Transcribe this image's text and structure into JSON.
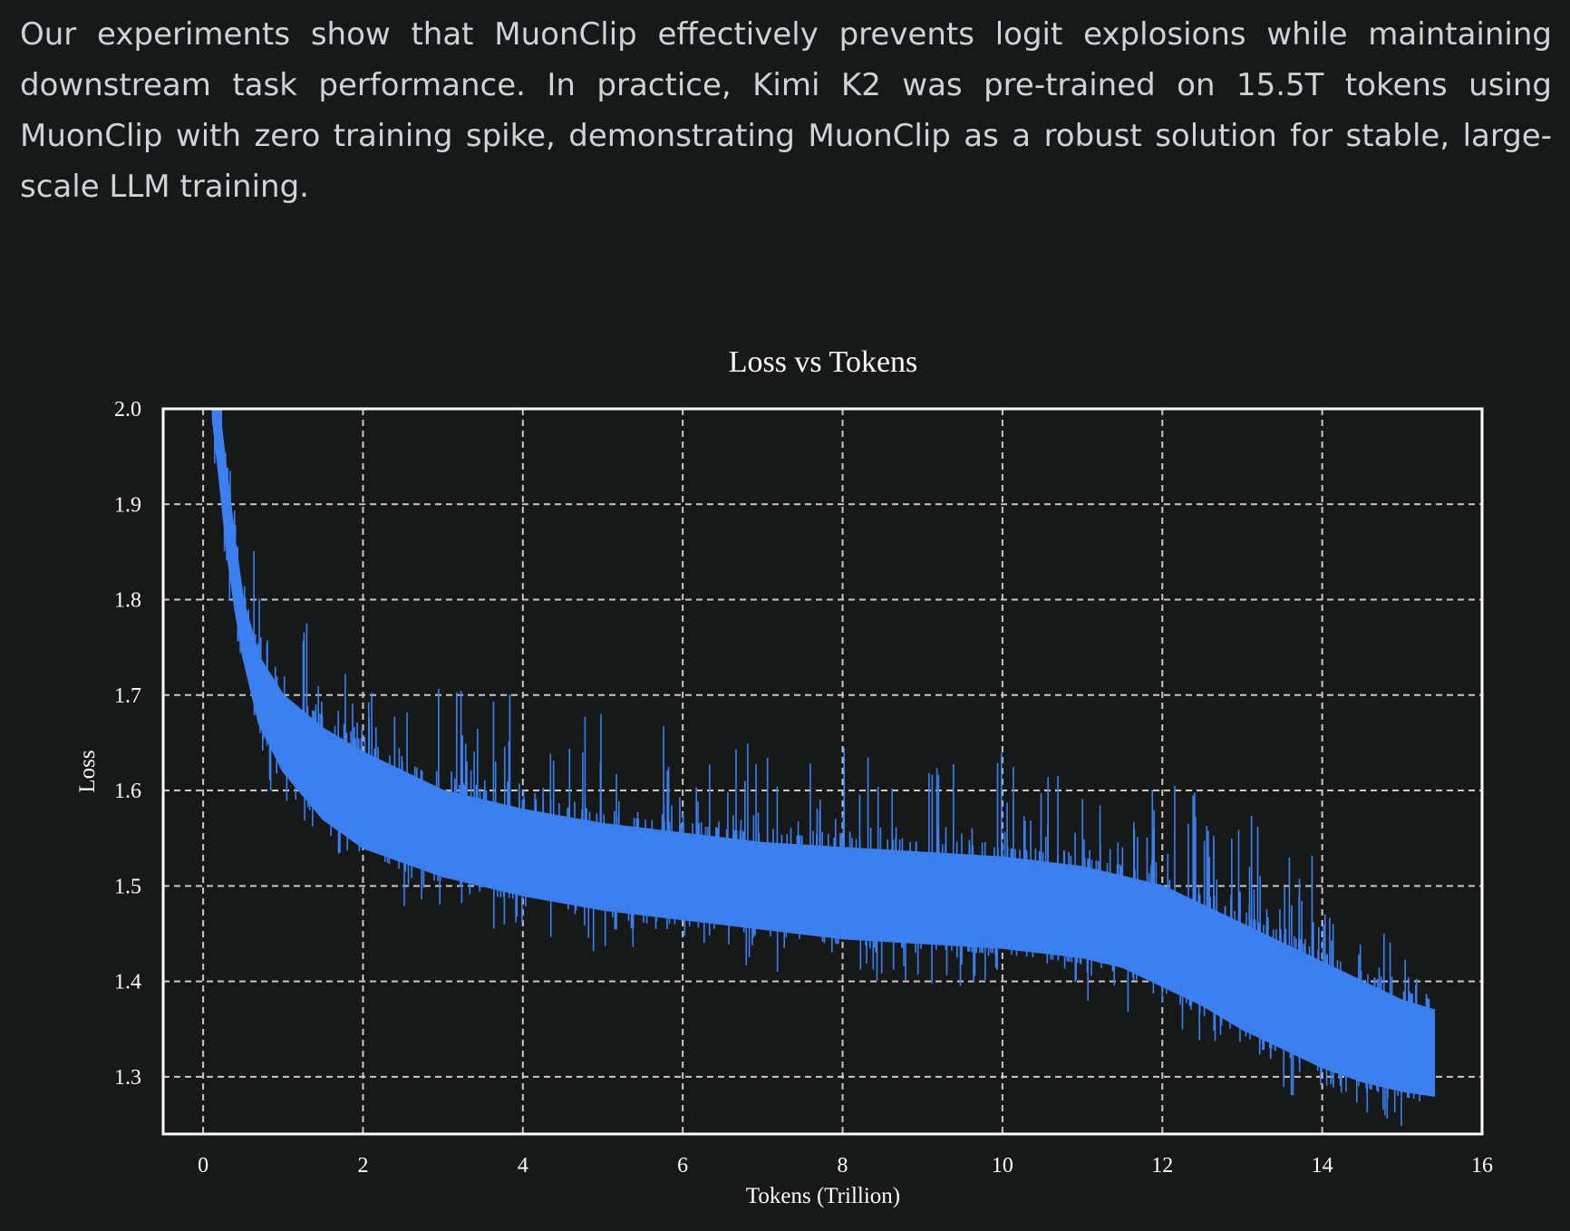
{
  "intro_text": "Our experiments show that MuonClip effectively prevents logit explosions while maintaining downstream task performance. In practice, Kimi K2 was pre-trained on 15.5T tokens using MuonClip with zero training spike, demonstrating MuonClip as a robust solution for stable, large-scale LLM training.",
  "colors": {
    "background": "#171919",
    "text": "#cfd2d6",
    "axes": "#ffffff",
    "grid": "#c8c8c8",
    "series": "#3b7ff0"
  },
  "chart_data": {
    "type": "line",
    "title": "Loss vs Tokens",
    "xlabel": "Tokens (Trillion)",
    "ylabel": "Loss",
    "xlim": [
      -0.5,
      16
    ],
    "ylim": [
      1.24,
      2.0
    ],
    "x_ticks": [
      0,
      2,
      4,
      6,
      8,
      10,
      12,
      14,
      16
    ],
    "y_ticks": [
      1.3,
      1.4,
      1.5,
      1.6,
      1.7,
      1.8,
      1.9,
      2.0
    ],
    "x_tick_labels": [
      "0",
      "2",
      "4",
      "6",
      "8",
      "10",
      "12",
      "14",
      "16"
    ],
    "y_tick_labels": [
      "1.3",
      "1.4",
      "1.5",
      "1.6",
      "1.7",
      "1.8",
      "1.9",
      "2.0"
    ],
    "grid": true,
    "legend": "none",
    "series": [
      {
        "x": [
          0.12,
          0.2,
          0.3,
          0.4,
          0.5,
          0.7,
          1.0,
          1.5,
          2.0,
          3.0,
          4.0,
          5.0,
          6.0,
          7.0,
          8.0,
          9.0,
          10.0,
          11.0,
          11.5,
          12.0,
          12.5,
          13.0,
          13.5,
          14.0,
          14.5,
          15.0,
          15.4
        ],
        "y_low": [
          1.99,
          1.93,
          1.85,
          1.79,
          1.74,
          1.67,
          1.62,
          1.57,
          1.54,
          1.51,
          1.49,
          1.475,
          1.465,
          1.455,
          1.445,
          1.44,
          1.435,
          1.425,
          1.415,
          1.395,
          1.375,
          1.35,
          1.33,
          1.31,
          1.295,
          1.285,
          1.28
        ],
        "y_high": [
          2.0,
          2.0,
          1.93,
          1.86,
          1.8,
          1.74,
          1.7,
          1.665,
          1.64,
          1.6,
          1.58,
          1.565,
          1.555,
          1.545,
          1.54,
          1.535,
          1.53,
          1.52,
          1.51,
          1.5,
          1.48,
          1.46,
          1.44,
          1.42,
          1.4,
          1.38,
          1.37
        ]
      }
    ]
  }
}
